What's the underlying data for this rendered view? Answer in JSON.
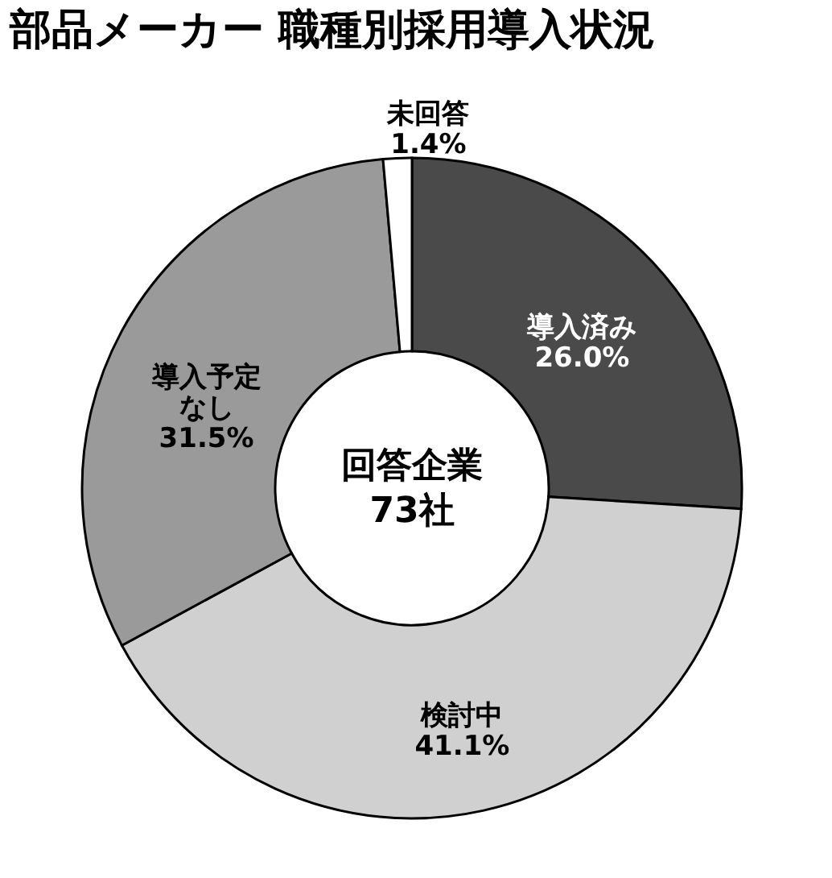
{
  "chart_data": {
    "type": "donut",
    "title": "部品メーカー 職種別採用導入状況",
    "categories": [
      "導入済み",
      "検討中",
      "導入予定なし",
      "未回答"
    ],
    "values": [
      26.0,
      41.1,
      31.5,
      1.4
    ],
    "value_labels": [
      "26.0%",
      "41.1%",
      "31.5%",
      "1.4%"
    ],
    "colors": [
      "#4a4a4a",
      "#d0d0d0",
      "#9a9a9a",
      "#ffffff"
    ],
    "annotations": [
      "回答企業",
      "73社"
    ],
    "legend": false
  }
}
